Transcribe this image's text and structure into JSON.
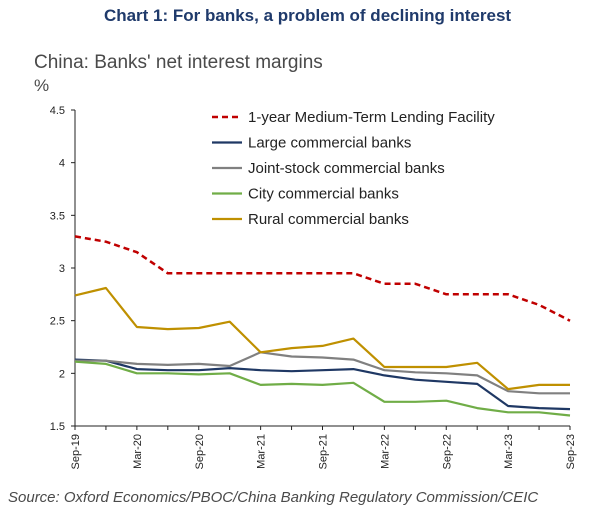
{
  "header": {
    "title": "Chart 1: For banks, a problem of declining interest",
    "subtitle": "China: Banks' net interest margins",
    "unit": "%"
  },
  "footer": {
    "source": "Source: Oxford Economics/PBOC/China Banking Regulatory Commission/CEIC"
  },
  "chart_data": {
    "type": "line",
    "title": "China: Banks' net interest margins",
    "ylabel": "%",
    "ylim": [
      1.5,
      4.5
    ],
    "yticks": [
      1.5,
      2,
      2.5,
      3,
      3.5,
      4,
      4.5
    ],
    "x_tick_labels": [
      "Sep-19",
      "Mar-20",
      "Sep-20",
      "Mar-21",
      "Sep-21",
      "Mar-22",
      "Sep-22",
      "Mar-23",
      "Sep-23"
    ],
    "x": [
      "Sep-19",
      "Dec-19",
      "Mar-20",
      "Jun-20",
      "Sep-20",
      "Dec-20",
      "Mar-21",
      "Jun-21",
      "Sep-21",
      "Dec-21",
      "Mar-22",
      "Jun-22",
      "Sep-22",
      "Dec-22",
      "Mar-23",
      "Jun-23",
      "Sep-23"
    ],
    "grid": false,
    "legend_position": "top-right",
    "series": [
      {
        "name": "1-year Medium-Term Lending Facility",
        "color": "#c00000",
        "dash": true,
        "values": [
          3.3,
          3.25,
          3.15,
          2.95,
          2.95,
          2.95,
          2.95,
          2.95,
          2.95,
          2.95,
          2.85,
          2.85,
          2.75,
          2.75,
          2.75,
          2.65,
          2.5
        ]
      },
      {
        "name": "Large commercial banks",
        "color": "#1f3864",
        "dash": false,
        "values": [
          2.13,
          2.12,
          2.04,
          2.03,
          2.03,
          2.05,
          2.03,
          2.02,
          2.03,
          2.04,
          1.98,
          1.94,
          1.92,
          1.9,
          1.69,
          1.67,
          1.66
        ]
      },
      {
        "name": "Joint-stock commercial banks",
        "color": "#808080",
        "dash": false,
        "values": [
          2.12,
          2.12,
          2.09,
          2.08,
          2.09,
          2.07,
          2.2,
          2.16,
          2.15,
          2.13,
          2.03,
          2.01,
          2.0,
          1.98,
          1.83,
          1.81,
          1.81
        ]
      },
      {
        "name": "City commercial banks",
        "color": "#70ad47",
        "dash": false,
        "values": [
          2.11,
          2.09,
          2.0,
          2.0,
          1.99,
          2.0,
          1.89,
          1.9,
          1.89,
          1.91,
          1.73,
          1.73,
          1.74,
          1.67,
          1.63,
          1.63,
          1.6
        ]
      },
      {
        "name": "Rural commercial banks",
        "color": "#bf9000",
        "dash": false,
        "values": [
          2.74,
          2.81,
          2.44,
          2.42,
          2.43,
          2.49,
          2.2,
          2.24,
          2.26,
          2.33,
          2.06,
          2.06,
          2.06,
          2.1,
          1.85,
          1.89,
          1.89
        ]
      }
    ]
  }
}
